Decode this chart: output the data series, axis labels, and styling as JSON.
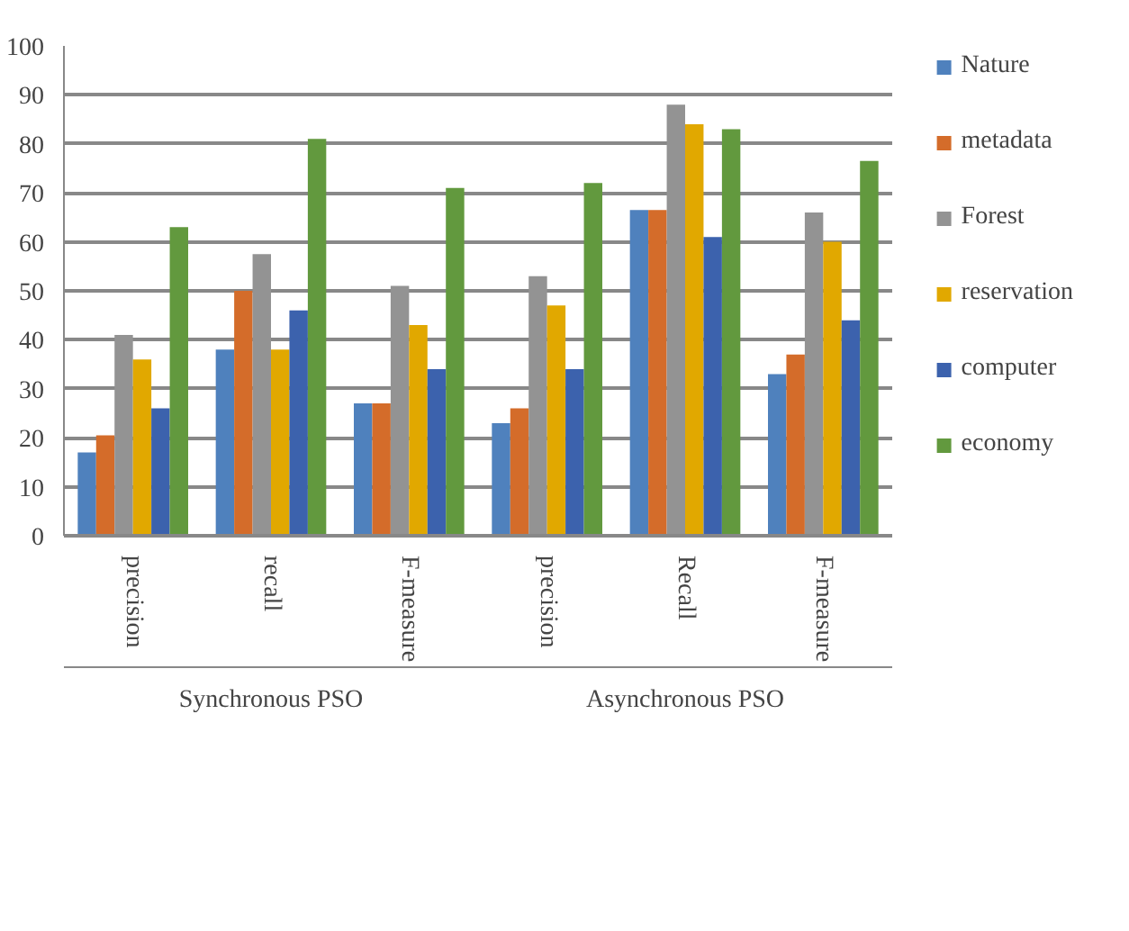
{
  "chart_data": {
    "type": "bar",
    "categories": [
      "precision",
      "recall",
      "F-measure",
      "precision",
      "Recall",
      "F-measure"
    ],
    "annotations": [
      "Synchronous PSO",
      "Asynchronous PSO"
    ],
    "series": [
      {
        "name": "Nature",
        "color": "#4f81bd",
        "values": [
          17,
          38,
          27,
          23,
          66.5,
          33
        ]
      },
      {
        "name": "metadata",
        "color": "#d46c2a",
        "values": [
          20.5,
          50,
          27,
          26,
          66.5,
          37
        ]
      },
      {
        "name": "Forest",
        "color": "#939393",
        "values": [
          41,
          57.5,
          51,
          53,
          88,
          66
        ]
      },
      {
        "name": "reservation",
        "color": "#e1a800",
        "values": [
          36,
          38,
          43,
          47,
          84,
          60
        ]
      },
      {
        "name": "computer",
        "color": "#3c62ad",
        "values": [
          26,
          46,
          34,
          34,
          61,
          44
        ]
      },
      {
        "name": "economy",
        "color": "#62993e",
        "values": [
          63,
          81,
          71,
          72,
          83,
          76.5
        ]
      }
    ],
    "ylim": [
      0,
      100
    ],
    "yticks": [
      0,
      10,
      20,
      30,
      40,
      50,
      60,
      70,
      80,
      90,
      100
    ],
    "grid": "y",
    "legend": "right"
  }
}
